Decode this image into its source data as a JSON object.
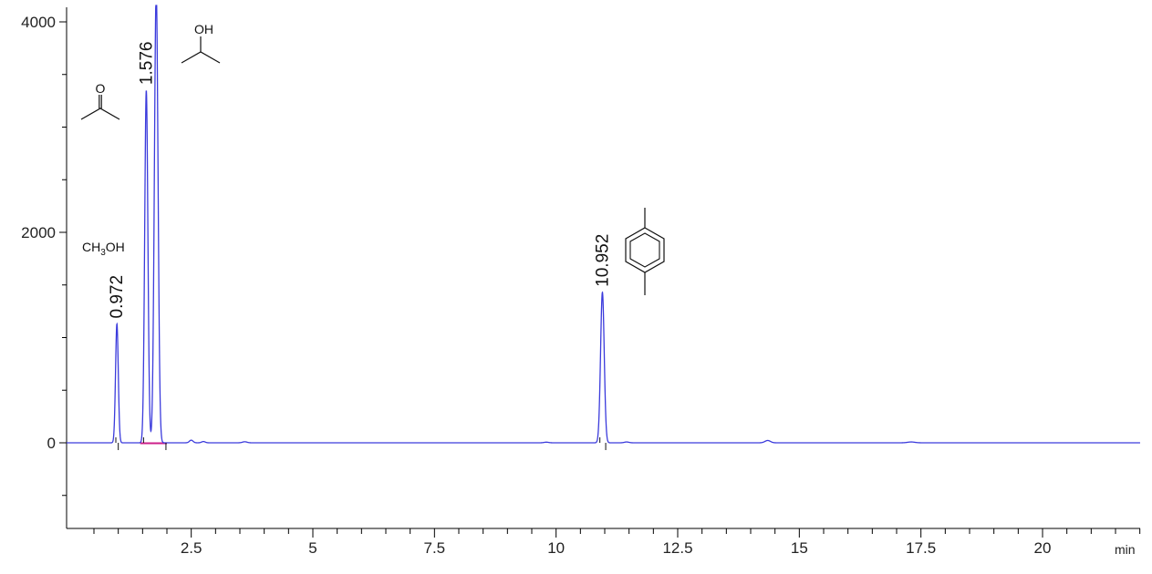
{
  "chart_data": {
    "type": "line",
    "title": "",
    "xlabel": "",
    "ylabel": "",
    "x_unit": "min",
    "xlim": [
      0,
      22
    ],
    "ylim": [
      -800,
      4200
    ],
    "x_ticks": [
      2.5,
      5,
      7.5,
      10,
      12.5,
      15,
      17.5,
      20
    ],
    "x_tick_labels": [
      "2.5",
      "5",
      "7.5",
      "10",
      "12.5",
      "15",
      "17.5",
      "20"
    ],
    "y_ticks": [
      0,
      2000,
      4000
    ],
    "y_tick_labels": [
      "0",
      "2000",
      "4000"
    ],
    "grid": false,
    "series": [
      {
        "color": "#3b3bdc",
        "peaks": [
          {
            "rt": 0.972,
            "height": 1130,
            "width": 0.03
          },
          {
            "rt": 1.576,
            "height": 3350,
            "width": 0.035
          },
          {
            "rt": 1.78,
            "height": 4300,
            "width": 0.04
          },
          {
            "rt": 2.5,
            "height": 25,
            "width": 0.04
          },
          {
            "rt": 2.75,
            "height": 12,
            "width": 0.04
          },
          {
            "rt": 3.6,
            "height": 10,
            "width": 0.05
          },
          {
            "rt": 9.8,
            "height": 6,
            "width": 0.05
          },
          {
            "rt": 10.952,
            "height": 1430,
            "width": 0.04
          },
          {
            "rt": 11.45,
            "height": 8,
            "width": 0.05
          },
          {
            "rt": 14.35,
            "height": 22,
            "width": 0.06
          },
          {
            "rt": 17.3,
            "height": 8,
            "width": 0.08
          }
        ]
      }
    ],
    "peak_labels": [
      {
        "rt": 0.972,
        "label": "0.972"
      },
      {
        "rt": 1.576,
        "label": "1.576"
      },
      {
        "rt": 10.952,
        "label": "10.952"
      }
    ],
    "compound_labels": {
      "methanol": {
        "prefix": "CH",
        "subscript": "3",
        "suffix": "OH"
      },
      "acetone_atom": "O",
      "isopropanol_atom": "OH"
    },
    "baseline_color": "#cc1f8a"
  }
}
